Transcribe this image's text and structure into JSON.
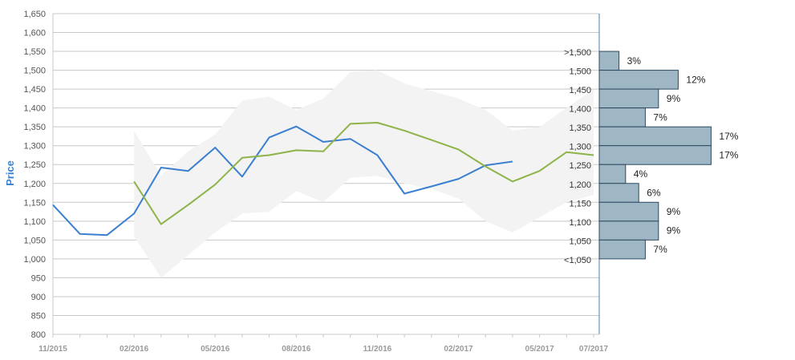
{
  "chart_data": {
    "type": "line",
    "ylabel": "Price",
    "ylim": [
      800,
      1650
    ],
    "y_ticks": [
      800,
      850,
      900,
      950,
      1000,
      1050,
      1100,
      1150,
      1200,
      1250,
      1300,
      1350,
      1400,
      1450,
      1500,
      1550,
      1600,
      1650
    ],
    "x_ticks": [
      "11/2015",
      "02/2016",
      "05/2016",
      "08/2016",
      "11/2016",
      "02/2017",
      "05/2017",
      "07/2017"
    ],
    "grid": true,
    "series": [
      {
        "color": "#3a7fd0",
        "x": [
          "2015-11",
          "2015-12",
          "2016-01",
          "2016-02",
          "2016-03",
          "2016-04",
          "2016-05",
          "2016-06",
          "2016-07",
          "2016-08",
          "2016-09",
          "2016-10",
          "2016-11",
          "2016-12",
          "2017-01",
          "2017-02",
          "2017-03",
          "2017-04"
        ],
        "y": [
          1143,
          1066,
          1063,
          1120,
          1242,
          1233,
          1295,
          1218,
          1322,
          1351,
          1310,
          1318,
          1275,
          1173,
          1192,
          1212,
          1248,
          1258
        ]
      },
      {
        "color": "#8db349",
        "x": [
          "2016-02",
          "2016-03",
          "2016-04",
          "2016-05",
          "2016-06",
          "2016-07",
          "2016-08",
          "2016-09",
          "2016-10",
          "2016-11",
          "2016-12",
          "2017-01",
          "2017-02",
          "2017-03",
          "2017-04",
          "2017-05",
          "2017-06",
          "2017-07"
        ],
        "y": [
          1205,
          1092,
          1143,
          1197,
          1268,
          1275,
          1288,
          1285,
          1358,
          1361,
          1340,
          1315,
          1290,
          1245,
          1205,
          1233,
          1283,
          1275
        ]
      }
    ],
    "range_band": {
      "color": "#f3f3f3",
      "x": [
        "2016-02",
        "2016-03",
        "2016-04",
        "2016-05",
        "2016-06",
        "2016-07",
        "2016-08",
        "2016-09",
        "2016-10",
        "2016-11",
        "2016-12",
        "2017-01",
        "2017-02",
        "2017-03",
        "2017-04",
        "2017-05",
        "2017-06",
        "2017-07"
      ],
      "upper": [
        1340,
        1220,
        1285,
        1330,
        1420,
        1430,
        1395,
        1425,
        1495,
        1500,
        1465,
        1445,
        1425,
        1395,
        1340,
        1350,
        1400,
        1450
      ],
      "lower": [
        1060,
        950,
        1010,
        1070,
        1120,
        1125,
        1180,
        1150,
        1215,
        1220,
        1200,
        1185,
        1160,
        1100,
        1070,
        1110,
        1150,
        1170
      ]
    },
    "distribution": {
      "bar_color": "#9fb7c4",
      "bins": [
        {
          "label": ">1,500",
          "from": 1500,
          "to": 1550,
          "pct": 3,
          "pct_label": "3%"
        },
        {
          "label": "1,500",
          "from": 1450,
          "to": 1500,
          "pct": 12,
          "pct_label": "12%"
        },
        {
          "label": "1,450",
          "from": 1400,
          "to": 1450,
          "pct": 9,
          "pct_label": "9%"
        },
        {
          "label": "1,400",
          "from": 1350,
          "to": 1400,
          "pct": 7,
          "pct_label": "7%"
        },
        {
          "label": "1,350",
          "from": 1300,
          "to": 1350,
          "pct": 17,
          "pct_label": "17%"
        },
        {
          "label": "1,300",
          "from": 1250,
          "to": 1300,
          "pct": 17,
          "pct_label": "17%"
        },
        {
          "label": "1,250",
          "from": 1200,
          "to": 1250,
          "pct": 4,
          "pct_label": "4%"
        },
        {
          "label": "1,200",
          "from": 1150,
          "to": 1200,
          "pct": 6,
          "pct_label": "6%"
        },
        {
          "label": "1,150",
          "from": 1100,
          "to": 1150,
          "pct": 9,
          "pct_label": "9%"
        },
        {
          "label": "1,100",
          "from": 1050,
          "to": 1100,
          "pct": 9,
          "pct_label": "9%"
        },
        {
          "label": "1,050",
          "from": 1000,
          "to": 1050,
          "pct": 7,
          "pct_label": "7%"
        },
        {
          "label": "<1,050",
          "from": 1000,
          "to": 1000,
          "pct": 0,
          "pct_label": ""
        }
      ]
    }
  }
}
